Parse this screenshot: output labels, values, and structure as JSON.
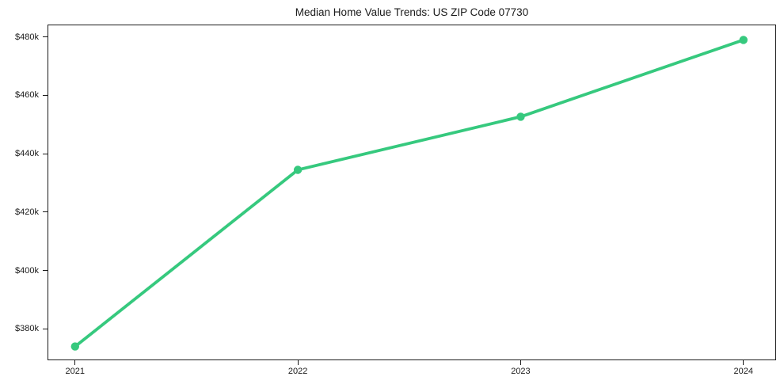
{
  "page": {
    "background_color": "#ffffff",
    "text_color": "#1a1a1a",
    "axis_color": "#1a1a1a"
  },
  "chart_data": {
    "type": "line",
    "title": "Median Home Value Trends: US ZIP Code 07730",
    "series": [
      {
        "name": "Median Home Value",
        "x": [
          2021,
          2022,
          2023,
          2024
        ],
        "values": [
          374000,
          434500,
          452700,
          479000
        ],
        "color": "#36c97e",
        "line_width": 3.8,
        "marker": "circle",
        "marker_radius": 5.2
      }
    ],
    "x_tick_labels": [
      "2021",
      "2022",
      "2023",
      "2024"
    ],
    "x_ticks": [
      2021,
      2022,
      2023,
      2024
    ],
    "y_ticks": [
      380000,
      400000,
      420000,
      440000,
      460000,
      480000
    ],
    "y_tick_labels": [
      "$380k",
      "$400k",
      "$420k",
      "$440k",
      "$460k",
      "$480k"
    ],
    "xlim": [
      2020.88,
      2024.15
    ],
    "ylim": [
      369000,
      484000
    ],
    "xlabel": "",
    "ylabel": "",
    "grid": false,
    "legend_position": "none",
    "plot_background": "#ffffff"
  }
}
